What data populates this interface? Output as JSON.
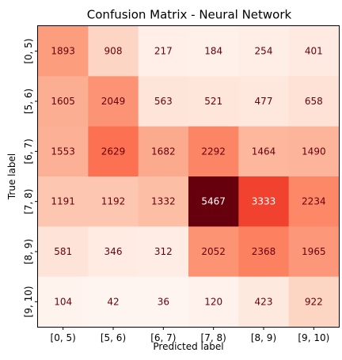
{
  "chart_data": {
    "type": "heatmap",
    "title": "Confusion Matrix - Neural Network",
    "xlabel": "Predicted label",
    "ylabel": "True label",
    "x_categories": [
      "[0, 5)",
      "[5, 6)",
      "[6, 7)",
      "[7, 8)",
      "[8, 9)",
      "[9, 10)"
    ],
    "y_categories": [
      "[0, 5)",
      "[5, 6)",
      "[6, 7)",
      "[7, 8)",
      "[8, 9)",
      "[9, 10)"
    ],
    "values": [
      [
        1893,
        908,
        217,
        184,
        254,
        401
      ],
      [
        1605,
        2049,
        563,
        521,
        477,
        658
      ],
      [
        1553,
        2629,
        1682,
        2292,
        1464,
        1490
      ],
      [
        1191,
        1192,
        1332,
        5467,
        3333,
        2234
      ],
      [
        581,
        346,
        312,
        2052,
        2368,
        1965
      ],
      [
        104,
        42,
        36,
        120,
        423,
        922
      ]
    ],
    "colormap": "Reds",
    "colorbar": false,
    "grid": false
  }
}
